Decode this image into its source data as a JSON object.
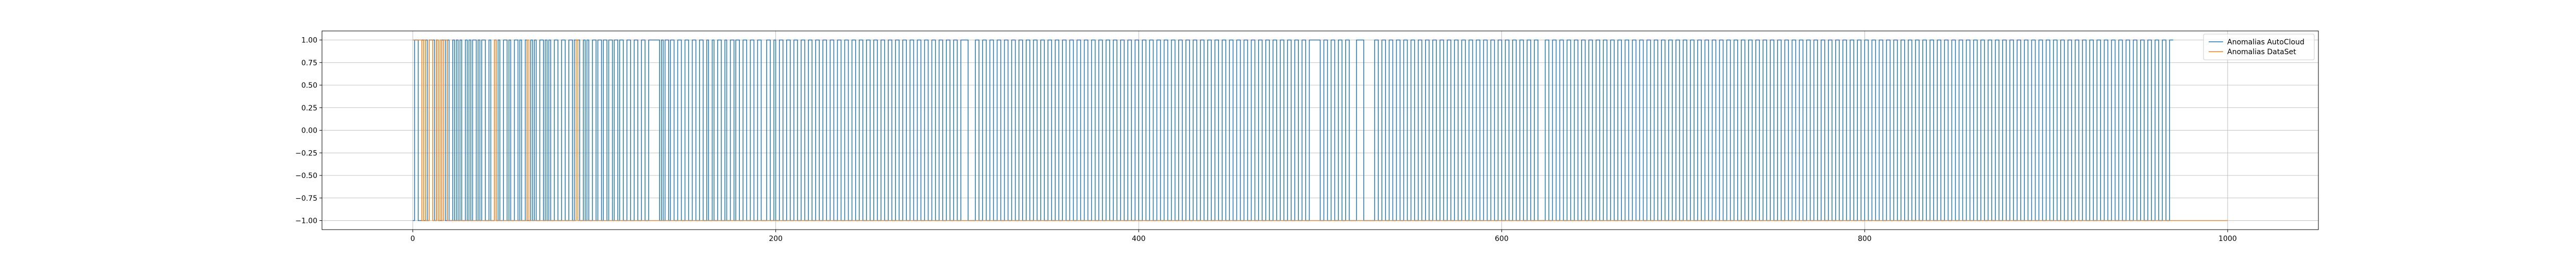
{
  "chart_data": {
    "type": "line",
    "title": "",
    "xlabel": "",
    "ylabel": "",
    "xlim": [
      -50,
      1050
    ],
    "ylim": [
      -1.1,
      1.1
    ],
    "grid": true,
    "legend_position": "upper-right",
    "x_ticks": [
      0,
      200,
      400,
      600,
      800,
      1000
    ],
    "x_tick_labels": [
      "0",
      "200",
      "400",
      "600",
      "800",
      "1000"
    ],
    "y_ticks": [
      1.0,
      0.75,
      0.5,
      0.25,
      0.0,
      -0.25,
      -0.5,
      -0.75,
      -1.0
    ],
    "y_tick_labels": [
      "1.00",
      "0.75",
      "0.50",
      "0.25",
      "0.00",
      "−0.25",
      "−0.50",
      "−0.75",
      "−1.00"
    ],
    "series": [
      {
        "name": "Anomalias AutoCloud",
        "color": "#1f77b4",
        "style": "step",
        "x_start": 0,
        "x_end": 970,
        "initial_value": -1,
        "toggle_points": [
          1,
          3,
          5,
          6,
          7,
          8,
          9,
          12,
          13,
          14,
          16,
          18,
          19,
          20,
          22,
          23,
          24,
          25,
          26,
          27,
          29,
          30,
          31,
          32,
          33,
          35,
          36,
          37,
          38,
          40,
          42,
          43,
          45,
          46,
          47,
          48,
          50,
          52,
          53,
          54,
          56,
          58,
          59,
          60,
          62,
          63,
          65,
          66,
          67,
          68,
          70,
          72,
          73,
          74,
          75,
          76,
          78,
          80,
          82,
          84,
          86,
          88,
          89,
          92,
          94,
          95,
          96,
          97,
          99,
          101,
          102,
          104,
          105,
          107,
          108,
          110,
          111,
          113,
          114,
          116,
          118,
          120,
          122,
          124,
          126,
          128,
          130,
          136,
          137,
          138,
          139,
          141,
          142,
          144,
          146,
          148,
          150,
          152,
          154,
          156,
          158,
          160,
          162,
          163,
          165,
          166,
          168,
          170,
          172,
          173,
          175,
          177,
          178,
          180,
          182,
          184,
          186,
          188,
          190,
          192,
          195,
          197,
          199,
          200,
          202,
          204,
          206,
          208,
          210,
          212,
          214,
          216,
          218,
          220,
          222,
          224,
          226,
          228,
          230,
          232,
          234,
          236,
          238,
          240,
          242,
          244,
          246,
          248,
          250,
          252,
          254,
          256,
          258,
          260,
          262,
          264,
          266,
          268,
          270,
          272,
          274,
          276,
          278,
          280,
          282,
          284,
          286,
          288,
          290,
          292,
          294,
          296,
          298,
          300,
          302,
          306,
          310,
          312,
          314,
          316,
          318,
          320,
          322,
          324,
          326,
          328,
          330,
          332,
          334,
          336,
          338,
          340,
          342,
          344,
          346,
          348,
          350,
          352,
          354,
          356,
          358,
          360,
          362,
          364,
          366,
          368,
          370,
          372,
          374,
          376,
          378,
          380,
          382,
          384,
          386,
          388,
          390,
          392,
          394,
          396,
          398,
          400,
          402,
          404,
          406,
          408,
          410,
          412,
          414,
          416,
          418,
          420,
          422,
          424,
          426,
          428,
          430,
          432,
          434,
          436,
          438,
          440,
          442,
          444,
          446,
          448,
          450,
          452,
          454,
          456,
          458,
          460,
          462,
          464,
          466,
          468,
          470,
          472,
          474,
          476,
          478,
          480,
          482,
          484,
          486,
          488,
          490,
          492,
          494,
          500,
          502,
          504,
          506,
          508,
          510,
          512,
          514,
          516,
          520,
          524,
          530,
          532,
          534,
          536,
          538,
          540,
          542,
          544,
          546,
          548,
          550,
          552,
          554,
          556,
          558,
          560,
          562,
          564,
          566,
          568,
          570,
          572,
          574,
          576,
          578,
          580,
          582,
          584,
          586,
          588,
          590,
          592,
          594,
          596,
          598,
          600,
          602,
          604,
          606,
          608,
          610,
          612,
          614,
          616,
          618,
          620,
          624,
          626,
          628,
          630,
          632,
          634,
          636,
          638,
          640,
          642,
          644,
          646,
          648,
          650,
          652,
          654,
          656,
          658,
          660,
          662,
          664,
          666,
          668,
          670,
          672,
          674,
          676,
          678,
          680,
          682,
          684,
          686,
          688,
          690,
          692,
          694,
          696,
          698,
          700,
          702,
          704,
          706,
          708,
          710,
          712,
          714,
          716,
          718,
          720,
          722,
          724,
          726,
          728,
          730,
          732,
          734,
          736,
          738,
          740,
          742,
          744,
          746,
          748,
          750,
          752,
          754,
          756,
          758,
          760,
          762,
          764,
          766,
          768,
          770,
          772,
          774,
          776,
          778,
          780,
          782,
          784,
          786,
          788,
          790,
          792,
          794,
          796,
          798,
          800,
          802,
          804,
          806,
          808,
          810,
          812,
          814,
          816,
          818,
          820,
          822,
          824,
          826,
          828,
          830,
          832,
          834,
          836,
          838,
          840,
          842,
          844,
          846,
          848,
          850,
          852,
          854,
          856,
          858,
          860,
          862,
          864,
          866,
          868,
          870,
          872,
          874,
          876,
          878,
          880,
          882,
          884,
          886,
          888,
          890,
          892,
          894,
          896,
          898,
          900,
          902,
          904,
          906,
          908,
          910,
          912,
          914,
          916,
          918,
          920,
          922,
          924,
          926,
          928,
          930,
          932,
          934,
          936,
          938,
          940,
          942,
          944,
          946,
          948,
          950,
          952,
          954,
          956,
          958,
          960,
          962,
          964,
          966,
          968
        ]
      },
      {
        "name": "Anomalias DataSet",
        "color": "#ff7f0e",
        "style": "step",
        "x_start": 0,
        "x_end": 1000,
        "initial_value": 1,
        "toggle_points": [
          5,
          6,
          7,
          9,
          11,
          13,
          14,
          15,
          16,
          17,
          19,
          45,
          46,
          63,
          64,
          90,
          91
        ]
      }
    ]
  }
}
